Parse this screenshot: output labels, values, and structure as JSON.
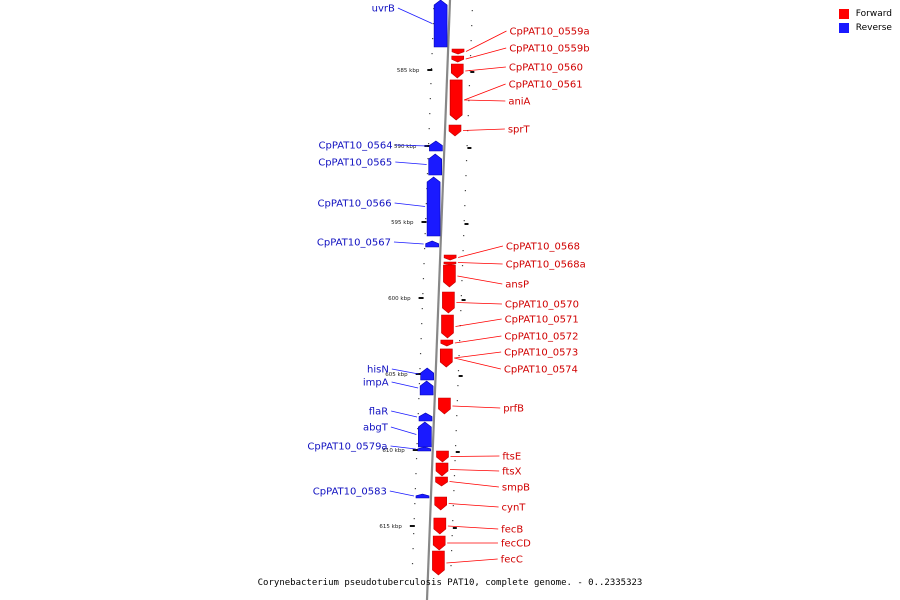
{
  "legend": {
    "forward": {
      "label": "Forward",
      "color": "#ff0000"
    },
    "reverse": {
      "label": "Reverse",
      "color": "#1a1aff"
    }
  },
  "caption": "Corynebacterium pseudotuberculosis PAT10, complete genome. - 0..2335323",
  "ticks": [
    "585 kbp",
    "590 kbp",
    "595 kbp",
    "600 kbp",
    "605 kbp",
    "610 kbp",
    "615 kbp"
  ],
  "genes_reverse": [
    "uvrB",
    "CpPAT10_0564",
    "CpPAT10_0565",
    "CpPAT10_0566",
    "CpPAT10_0567",
    "hisN",
    "impA",
    "flaR",
    "abgT",
    "CpPAT10_0579a",
    "CpPAT10_0583"
  ],
  "genes_forward": [
    "CpPAT10_0559a",
    "CpPAT10_0559b",
    "CpPAT10_0560",
    "CpPAT10_0561",
    "aniA",
    "sprT",
    "CpPAT10_0568",
    "CpPAT10_0568a",
    "ansP",
    "CpPAT10_0570",
    "CpPAT10_0571",
    "CpPAT10_0572",
    "CpPAT10_0573",
    "CpPAT10_0574",
    "prfB",
    "ftsE",
    "ftsX",
    "smpB",
    "cynT",
    "fecB",
    "fecCD",
    "fecC"
  ]
}
